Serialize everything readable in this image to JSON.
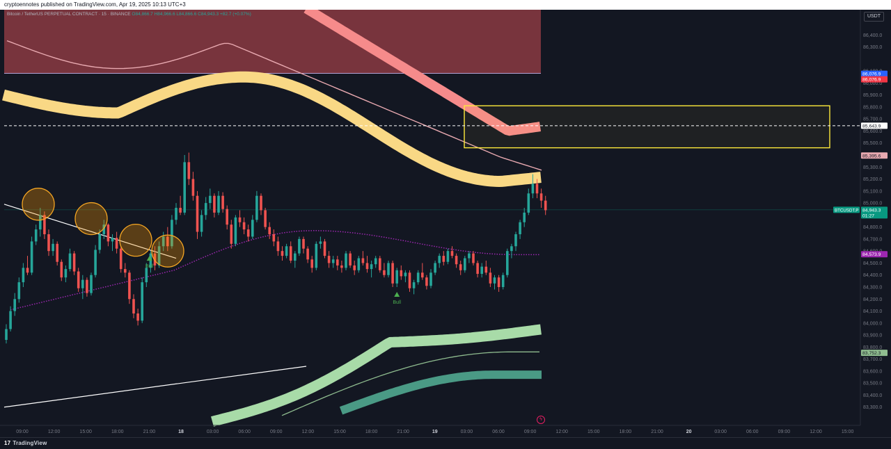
{
  "header": {
    "published_text": "cryptoennotes published on TradingView.com, Apr 19, 2025 10:13 UTC+3"
  },
  "legend": {
    "symbol": "Bitcoin / TetherUS PERPETUAL CONTRACT · 15 · BINANCE",
    "open": "O84,866.7",
    "high": "H84,966.6",
    "low": "L84,866.6",
    "close": "C84,943.3",
    "change": "+82.7 (+0.07%)"
  },
  "currency_button": "USDT",
  "footer": {
    "brand": "TradingView"
  },
  "colors": {
    "background": "#131722",
    "up": "#26a69a",
    "down": "#ef5350",
    "upper_band": "#f9d885",
    "red_band": "#f68b8b",
    "resistance_zone": "#8b3a42",
    "green_band_light": "#a8dba8",
    "green_band_dark": "#4a9a85",
    "midline": "#9c27b0",
    "target_box": "#ffeb3b"
  },
  "chart_data": {
    "type": "candlestick",
    "symbol": "BTCUSDT.P",
    "interval": "15",
    "ylim": [
      83200,
      86500
    ],
    "y_ticks": [
      "86,400.0",
      "86,300.0",
      "86,100.0",
      "86,000.0",
      "85,900.0",
      "85,800.0",
      "85,700.0",
      "85,600.0",
      "85,500.0",
      "85,300.0",
      "85,200.0",
      "85,100.0",
      "85,000.0",
      "84,800.0",
      "84,700.0",
      "84,600.0",
      "84,500.0",
      "84,400.0",
      "84,300.0",
      "84,200.0",
      "84,100.0",
      "84,000.0",
      "83,900.0",
      "83,800.0",
      "83,700.0",
      "83,600.0",
      "83,500.0",
      "83,400.0",
      "83,300.0"
    ],
    "x_ticks": [
      {
        "label": "09:00",
        "bold": false
      },
      {
        "label": "12:00",
        "bold": false
      },
      {
        "label": "15:00",
        "bold": false
      },
      {
        "label": "18:00",
        "bold": false
      },
      {
        "label": "21:00",
        "bold": false
      },
      {
        "label": "18",
        "bold": true
      },
      {
        "label": "03:00",
        "bold": false
      },
      {
        "label": "06:00",
        "bold": false
      },
      {
        "label": "09:00",
        "bold": false
      },
      {
        "label": "12:00",
        "bold": false
      },
      {
        "label": "15:00",
        "bold": false
      },
      {
        "label": "18:00",
        "bold": false
      },
      {
        "label": "21:00",
        "bold": false
      },
      {
        "label": "19",
        "bold": true
      },
      {
        "label": "03:00",
        "bold": false
      },
      {
        "label": "06:00",
        "bold": false
      },
      {
        "label": "09:00",
        "bold": false
      },
      {
        "label": "12:00",
        "bold": false
      },
      {
        "label": "15:00",
        "bold": false
      },
      {
        "label": "18:00",
        "bold": false
      },
      {
        "label": "21:00",
        "bold": false
      },
      {
        "label": "20",
        "bold": true
      },
      {
        "label": "03:00",
        "bold": false
      },
      {
        "label": "06:00",
        "bold": false
      },
      {
        "label": "09:00",
        "bold": false
      },
      {
        "label": "12:00",
        "bold": false
      },
      {
        "label": "15:00",
        "bold": false
      }
    ],
    "price_labels": [
      {
        "text": "86,076.9",
        "price": 86076.9,
        "bg": "#2962ff",
        "fg": "#ffffff"
      },
      {
        "text": "86,076.9",
        "price": 86030,
        "bg": "#f23645",
        "fg": "#ffffff"
      },
      {
        "text": "85,643.9",
        "price": 85643.9,
        "bg": "#ffffff",
        "fg": "#131722"
      },
      {
        "text": "85,395.6",
        "price": 85395.6,
        "bg": "#e8a9b0",
        "fg": "#131722"
      },
      {
        "text": "84,573.9",
        "price": 84573.9,
        "bg": "#9c27b0",
        "fg": "#ffffff"
      },
      {
        "text": "83,752.3",
        "price": 83752.3,
        "bg": "#8fbc8f",
        "fg": "#131722"
      }
    ],
    "last_price": {
      "symbol_label": "BTCUSDT.P",
      "price_text": "84,943.3",
      "countdown": "01:27",
      "price": 84943.3
    },
    "signals": [
      {
        "label": "Bull",
        "bar": 37
      },
      {
        "label": "Bull",
        "bar": 92
      }
    ],
    "dashed_level": 85643.9,
    "candles": [
      [
        83860,
        83990,
        83830,
        83950
      ],
      [
        83950,
        84140,
        83930,
        84100
      ],
      [
        84100,
        84250,
        84060,
        84200
      ],
      [
        84200,
        84380,
        84170,
        84340
      ],
      [
        84340,
        84500,
        84300,
        84460
      ],
      [
        84460,
        84560,
        84400,
        84420
      ],
      [
        84420,
        84720,
        84400,
        84680
      ],
      [
        84680,
        84820,
        84650,
        84780
      ],
      [
        84780,
        84960,
        84720,
        84900
      ],
      [
        84900,
        84930,
        84700,
        84740
      ],
      [
        84740,
        84780,
        84560,
        84600
      ],
      [
        84600,
        84700,
        84560,
        84660
      ],
      [
        84660,
        84680,
        84480,
        84510
      ],
      [
        84510,
        84530,
        84350,
        84380
      ],
      [
        84380,
        84480,
        84340,
        84450
      ],
      [
        84450,
        84620,
        84430,
        84580
      ],
      [
        84580,
        84600,
        84400,
        84430
      ],
      [
        84430,
        84460,
        84260,
        84290
      ],
      [
        84290,
        84400,
        84200,
        84360
      ],
      [
        84360,
        84380,
        84220,
        84250
      ],
      [
        84250,
        84420,
        84230,
        84400
      ],
      [
        84400,
        84650,
        84380,
        84610
      ],
      [
        84610,
        84780,
        84580,
        84740
      ],
      [
        84740,
        84860,
        84700,
        84820
      ],
      [
        84820,
        84830,
        84640,
        84680
      ],
      [
        84680,
        84740,
        84600,
        84710
      ],
      [
        84710,
        84760,
        84580,
        84620
      ],
      [
        84620,
        84640,
        84420,
        84450
      ],
      [
        84450,
        84500,
        84380,
        84420
      ],
      [
        84420,
        84440,
        84160,
        84200
      ],
      [
        84200,
        84240,
        84040,
        84080
      ],
      [
        84080,
        84120,
        83980,
        84020
      ],
      [
        84020,
        84380,
        84000,
        84340
      ],
      [
        84340,
        84500,
        84300,
        84460
      ],
      [
        84460,
        84600,
        84420,
        84580
      ],
      [
        84580,
        84640,
        84440,
        84480
      ],
      [
        84480,
        84680,
        84460,
        84640
      ],
      [
        84640,
        84760,
        84600,
        84720
      ],
      [
        84720,
        84800,
        84600,
        84640
      ],
      [
        84640,
        84900,
        84620,
        84860
      ],
      [
        84860,
        85000,
        84820,
        84960
      ],
      [
        84960,
        85060,
        84900,
        84920
      ],
      [
        84920,
        85400,
        84900,
        85340
      ],
      [
        85340,
        85420,
        85150,
        85200
      ],
      [
        85200,
        85260,
        85020,
        85060
      ],
      [
        85060,
        85100,
        84700,
        84760
      ],
      [
        84760,
        84940,
        84720,
        84900
      ],
      [
        84900,
        85050,
        84860,
        85000
      ],
      [
        85000,
        85120,
        84950,
        85060
      ],
      [
        85060,
        85080,
        84880,
        84920
      ],
      [
        84920,
        85100,
        84900,
        85060
      ],
      [
        85060,
        85090,
        84920,
        84950
      ],
      [
        84950,
        84980,
        84780,
        84820
      ],
      [
        84820,
        84860,
        84620,
        84660
      ],
      [
        84660,
        84900,
        84640,
        84880
      ],
      [
        84880,
        84940,
        84800,
        84840
      ],
      [
        84840,
        84880,
        84740,
        84780
      ],
      [
        84780,
        84820,
        84680,
        84720
      ],
      [
        84720,
        84900,
        84700,
        84860
      ],
      [
        84860,
        85100,
        84840,
        85060
      ],
      [
        85060,
        85080,
        84900,
        84940
      ],
      [
        84940,
        84960,
        84780,
        84800
      ],
      [
        84800,
        84840,
        84700,
        84740
      ],
      [
        84740,
        84780,
        84640,
        84680
      ],
      [
        84680,
        84720,
        84560,
        84600
      ],
      [
        84600,
        84640,
        84520,
        84560
      ],
      [
        84560,
        84660,
        84540,
        84640
      ],
      [
        84640,
        84680,
        84500,
        84520
      ],
      [
        84520,
        84600,
        84460,
        84580
      ],
      [
        84580,
        84720,
        84560,
        84700
      ],
      [
        84700,
        84720,
        84580,
        84620
      ],
      [
        84620,
        84640,
        84500,
        84530
      ],
      [
        84530,
        84560,
        84420,
        84460
      ],
      [
        84460,
        84680,
        84440,
        84660
      ],
      [
        84660,
        84720,
        84620,
        84680
      ],
      [
        84680,
        84700,
        84540,
        84560
      ],
      [
        84560,
        84600,
        84460,
        84500
      ],
      [
        84500,
        84560,
        84460,
        84530
      ],
      [
        84530,
        84560,
        84440,
        84480
      ],
      [
        84480,
        84520,
        84420,
        84460
      ],
      [
        84460,
        84600,
        84440,
        84580
      ],
      [
        84580,
        84600,
        84460,
        84480
      ],
      [
        84480,
        84520,
        84400,
        84440
      ],
      [
        84440,
        84560,
        84420,
        84540
      ],
      [
        84540,
        84600,
        84480,
        84500
      ],
      [
        84500,
        84560,
        84420,
        84450
      ],
      [
        84450,
        84520,
        84380,
        84490
      ],
      [
        84490,
        84560,
        84460,
        84540
      ],
      [
        84540,
        84560,
        84420,
        84440
      ],
      [
        84440,
        84500,
        84380,
        84400
      ],
      [
        84400,
        84520,
        84380,
        84500
      ],
      [
        84500,
        84520,
        84300,
        84330
      ],
      [
        84330,
        84460,
        84300,
        84440
      ],
      [
        84440,
        84480,
        84360,
        84390
      ],
      [
        84390,
        84440,
        84340,
        84420
      ],
      [
        84420,
        84440,
        84260,
        84290
      ],
      [
        84290,
        84360,
        84240,
        84340
      ],
      [
        84340,
        84440,
        84320,
        84420
      ],
      [
        84420,
        84500,
        84360,
        84380
      ],
      [
        84380,
        84400,
        84280,
        84310
      ],
      [
        84310,
        84450,
        84290,
        84420
      ],
      [
        84420,
        84520,
        84400,
        84500
      ],
      [
        84500,
        84580,
        84460,
        84560
      ],
      [
        84560,
        84600,
        84480,
        84510
      ],
      [
        84510,
        84620,
        84490,
        84600
      ],
      [
        84600,
        84640,
        84540,
        84560
      ],
      [
        84560,
        84580,
        84460,
        84490
      ],
      [
        84490,
        84520,
        84400,
        84440
      ],
      [
        84440,
        84560,
        84420,
        84540
      ],
      [
        84540,
        84600,
        84500,
        84580
      ],
      [
        84580,
        84600,
        84480,
        84500
      ],
      [
        84500,
        84520,
        84380,
        84410
      ],
      [
        84410,
        84500,
        84380,
        84470
      ],
      [
        84470,
        84520,
        84400,
        84420
      ],
      [
        84420,
        84460,
        84300,
        84330
      ],
      [
        84330,
        84400,
        84280,
        84380
      ],
      [
        84380,
        84400,
        84260,
        84300
      ],
      [
        84300,
        84420,
        84280,
        84400
      ],
      [
        84400,
        84620,
        84380,
        84600
      ],
      [
        84600,
        84660,
        84540,
        84640
      ],
      [
        84640,
        84760,
        84600,
        84740
      ],
      [
        84740,
        84860,
        84700,
        84840
      ],
      [
        84840,
        84960,
        84800,
        84920
      ],
      [
        84920,
        85120,
        84900,
        85080
      ],
      [
        85080,
        85240,
        85040,
        85160
      ],
      [
        85160,
        85200,
        85040,
        85080
      ],
      [
        85080,
        85120,
        84960,
        85020
      ],
      [
        85020,
        85060,
        84900,
        84940
      ]
    ]
  }
}
